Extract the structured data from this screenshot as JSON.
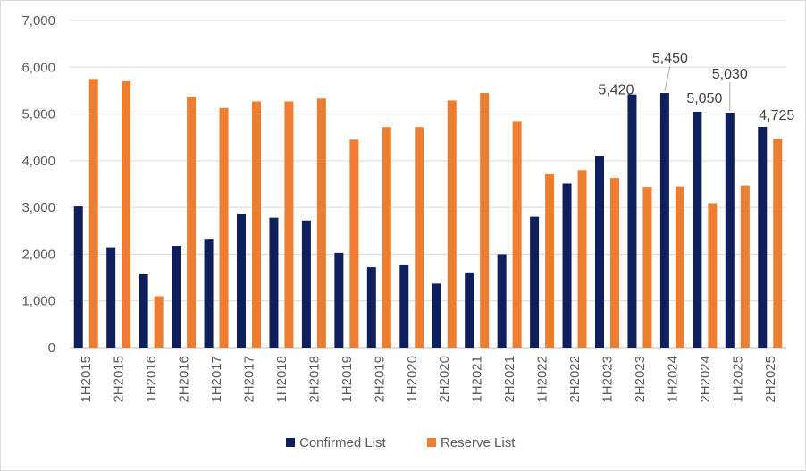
{
  "chart_data": {
    "type": "bar",
    "title": "",
    "xlabel": "",
    "ylabel": "",
    "ylim": [
      0,
      7000
    ],
    "yticks": [
      0,
      1000,
      2000,
      3000,
      4000,
      5000,
      6000,
      7000
    ],
    "ytick_labels": [
      "0",
      "1,000",
      "2,000",
      "3,000",
      "4,000",
      "5,000",
      "6,000",
      "7,000"
    ],
    "grid": true,
    "legend_position": "bottom",
    "categories": [
      "1H2015",
      "2H2015",
      "1H2016",
      "2H2016",
      "1H2017",
      "2H2017",
      "1H2018",
      "2H2018",
      "1H2019",
      "2H2019",
      "1H2020",
      "2H2020",
      "1H2021",
      "2H2021",
      "1H2022",
      "2H2022",
      "1H2023",
      "2H2023",
      "1H2024",
      "2H2024",
      "1H2025",
      "2H2025"
    ],
    "series": [
      {
        "name": "Confirmed List",
        "color": "#0e1f5b",
        "values": [
          3020,
          2150,
          1570,
          2180,
          2330,
          2860,
          2780,
          2720,
          2030,
          1720,
          1780,
          1370,
          1610,
          2000,
          2800,
          3510,
          4100,
          5420,
          5450,
          5050,
          5030,
          4725
        ]
      },
      {
        "name": "Reserve List",
        "color": "#ed7d31",
        "values": [
          5750,
          5700,
          1100,
          5370,
          5130,
          5270,
          5270,
          5330,
          4450,
          4720,
          4720,
          5290,
          5450,
          4850,
          3710,
          3800,
          3630,
          3440,
          3450,
          3090,
          3470,
          4470
        ]
      }
    ],
    "data_labels": [
      {
        "series": 0,
        "index": 17,
        "text": "5,420"
      },
      {
        "series": 0,
        "index": 18,
        "text": "5,450"
      },
      {
        "series": 0,
        "index": 19,
        "text": "5,050"
      },
      {
        "series": 0,
        "index": 20,
        "text": "5,030"
      },
      {
        "series": 0,
        "index": 21,
        "text": "4,725"
      }
    ]
  }
}
